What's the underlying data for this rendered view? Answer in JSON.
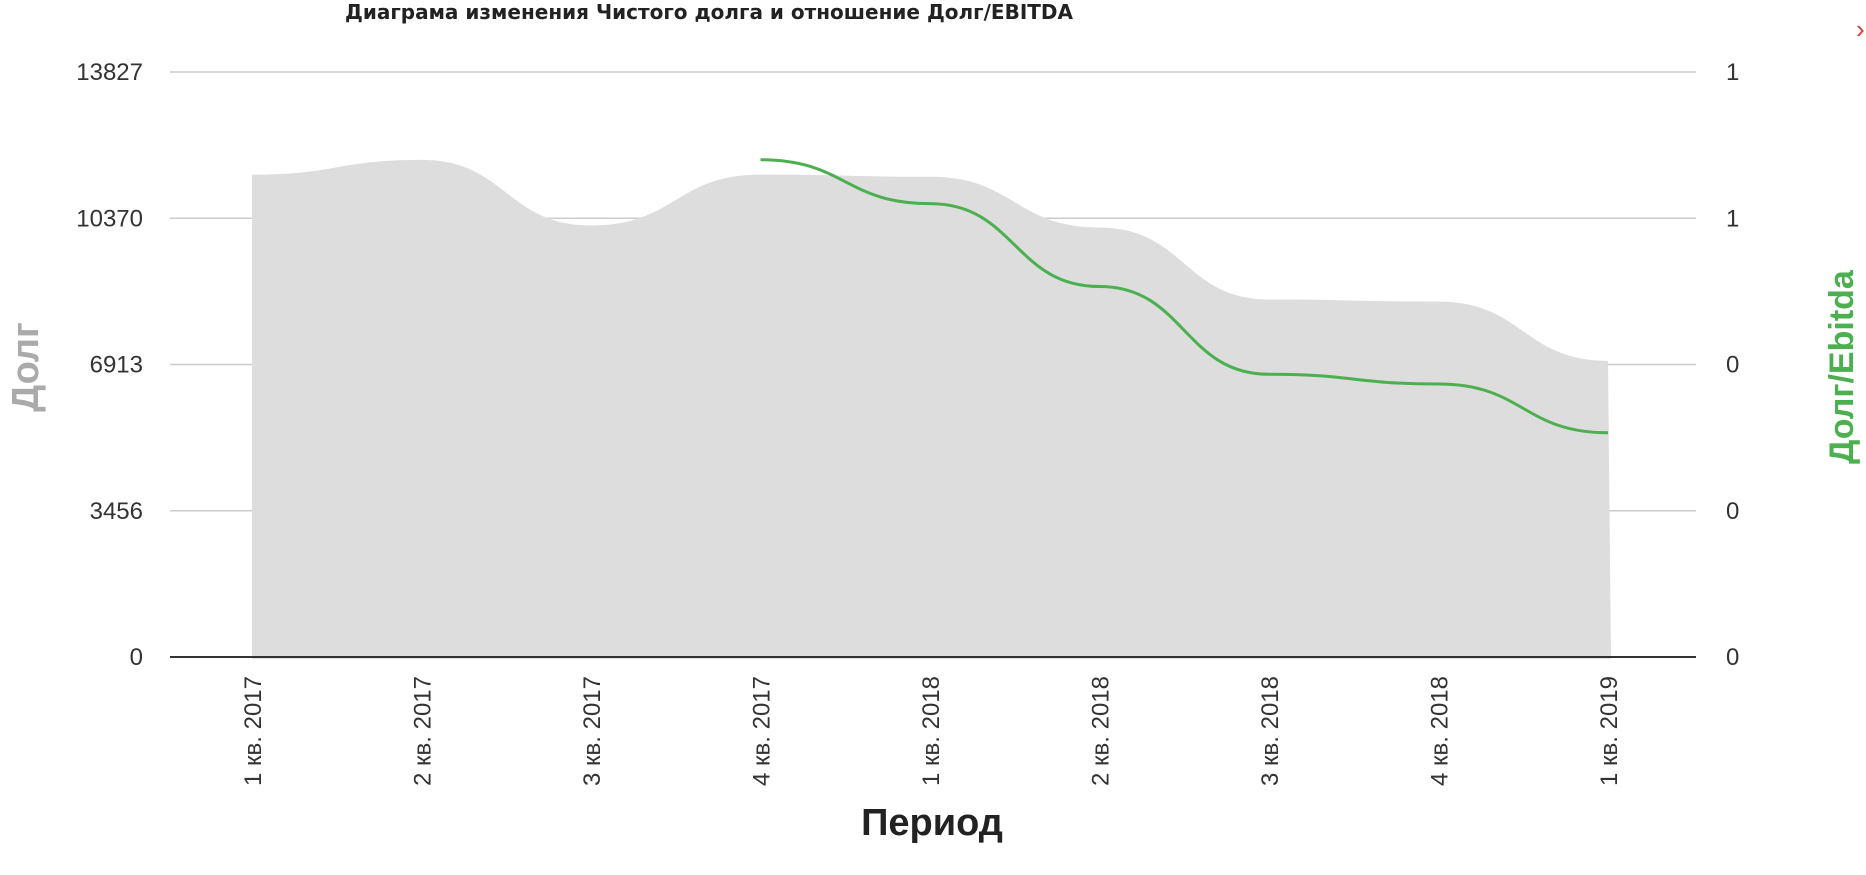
{
  "chart_data": {
    "type": "area",
    "title": "Диаграма изменения Чистого долга и отношение Долг/EBITDA",
    "xlabel": "Период",
    "ylabel": "Долг",
    "ylabel_right": "Долг/Ebitda",
    "categories": [
      "1 кв. 2017",
      "2 кв. 2017",
      "3 кв. 2017",
      "4 кв. 2017",
      "1 кв. 2018",
      "2 кв. 2018",
      "3 кв. 2018",
      "4 кв. 2018",
      "1 кв. 2019"
    ],
    "yticks": [
      "0",
      "3456",
      "6913",
      "10370",
      "13827"
    ],
    "yticks_right": [
      "0",
      "0",
      "0",
      "1",
      "1"
    ],
    "ylim": [
      0,
      13827
    ],
    "ylim_right": [
      0,
      1.2
    ],
    "grid": true,
    "series": [
      {
        "name": "Долг",
        "type": "area",
        "axis": "left",
        "color": "#dddddd",
        "values": [
          11400,
          11750,
          10200,
          11400,
          11350,
          10150,
          8450,
          8400,
          7000
        ]
      },
      {
        "name": "Долг/Ebitda",
        "type": "line",
        "axis": "right",
        "color": "#4caf50",
        "values": [
          null,
          null,
          null,
          1.02,
          0.93,
          0.76,
          0.58,
          0.56,
          0.46
        ]
      }
    ]
  },
  "ui": {
    "close_glyph": "›",
    "close_icon": "chevron-right-icon",
    "close_color": "#e53935"
  }
}
